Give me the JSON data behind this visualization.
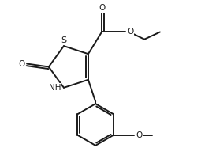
{
  "background_color": "#ffffff",
  "line_color": "#1a1a1a",
  "line_width": 1.4,
  "font_size": 7.5,
  "xlim": [
    0,
    10
  ],
  "ylim": [
    0,
    7.5
  ]
}
